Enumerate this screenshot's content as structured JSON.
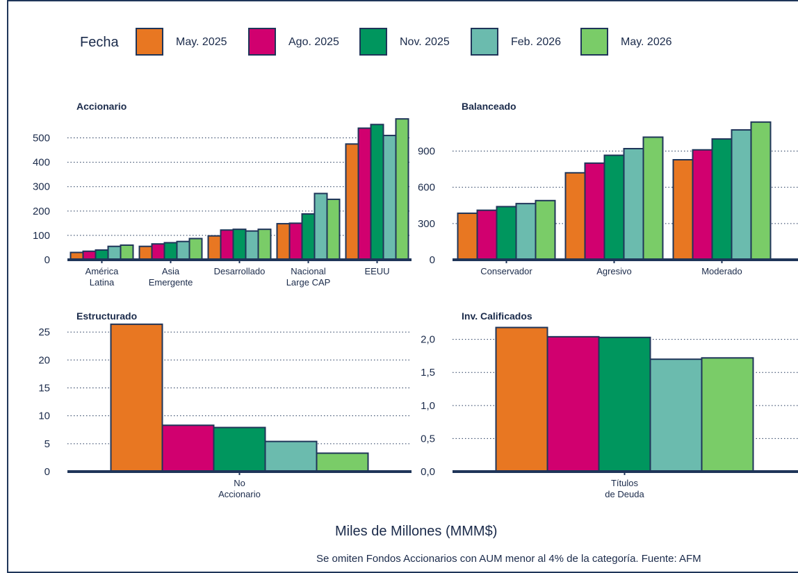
{
  "legend": {
    "title": "Fecha",
    "items": [
      {
        "label": "May. 2025",
        "color": "#E87722"
      },
      {
        "label": "Ago. 2025",
        "color": "#D1006F"
      },
      {
        "label": "Nov. 2025",
        "color": "#00965E"
      },
      {
        "label": "Feb. 2026",
        "color": "#6BBBAE"
      },
      {
        "label": "May. 2026",
        "color": "#7ACC68"
      }
    ]
  },
  "footer": {
    "units": "Miles de Millones (MMM$)",
    "note": "Se omiten Fondos Accionarios con AUM menor al 4% de la categoría. Fuente: AFM"
  },
  "chart_data": [
    {
      "type": "bar",
      "title": "Accionario",
      "categories": [
        "América\nLatina",
        "Asia\nEmergente",
        "Desarrollado",
        "Nacional\nLarge CAP",
        "EEUU"
      ],
      "yticks": [
        "0",
        "100",
        "200",
        "300",
        "400",
        "500"
      ],
      "tick_values": [
        0,
        100,
        200,
        300,
        400,
        500
      ],
      "ylim": [
        0,
        570
      ],
      "grid": true,
      "series": [
        {
          "name": "May. 2025",
          "values": [
            30,
            55,
            98,
            148,
            475
          ]
        },
        {
          "name": "Ago. 2025",
          "values": [
            35,
            65,
            122,
            150,
            540
          ]
        },
        {
          "name": "Nov. 2025",
          "values": [
            40,
            70,
            125,
            188,
            555
          ]
        },
        {
          "name": "Feb. 2026",
          "values": [
            55,
            75,
            118,
            272,
            510
          ]
        },
        {
          "name": "May. 2026",
          "values": [
            60,
            87,
            125,
            248,
            578
          ]
        }
      ]
    },
    {
      "type": "bar",
      "title": "Balanceado",
      "categories": [
        "Conservador",
        "Agresivo",
        "Moderado"
      ],
      "yticks": [
        "0",
        "300",
        "600",
        "900"
      ],
      "tick_values": [
        0,
        300,
        600,
        900
      ],
      "ylim": [
        0,
        1150
      ],
      "grid": true,
      "series": [
        {
          "name": "May. 2025",
          "values": [
            385,
            720,
            828
          ]
        },
        {
          "name": "Ago. 2025",
          "values": [
            410,
            800,
            910
          ]
        },
        {
          "name": "Nov. 2025",
          "values": [
            440,
            865,
            1000
          ]
        },
        {
          "name": "Feb. 2026",
          "values": [
            465,
            920,
            1075
          ]
        },
        {
          "name": "May. 2026",
          "values": [
            490,
            1015,
            1140
          ]
        }
      ]
    },
    {
      "type": "bar",
      "title": "Estructurado",
      "categories": [
        "No\nAccionario"
      ],
      "yticks": [
        "0",
        "5",
        "10",
        "15",
        "20",
        "25"
      ],
      "tick_values": [
        0,
        5,
        10,
        15,
        20,
        25
      ],
      "ylim": [
        0,
        27
      ],
      "grid": true,
      "series": [
        {
          "name": "May. 2025",
          "values": [
            26.4
          ]
        },
        {
          "name": "Ago. 2025",
          "values": [
            8.3
          ]
        },
        {
          "name": "Nov. 2025",
          "values": [
            7.9
          ]
        },
        {
          "name": "Feb. 2026",
          "values": [
            5.4
          ]
        },
        {
          "name": "May. 2026",
          "values": [
            3.3
          ]
        }
      ]
    },
    {
      "type": "bar",
      "title": "Inv. Calificados",
      "categories": [
        "Títulos\nde Deuda"
      ],
      "yticks": [
        "0,0",
        "0,5",
        "1,0",
        "1,5",
        "2,0"
      ],
      "tick_values": [
        0,
        0.5,
        1.0,
        1.5,
        2.0
      ],
      "ylim": [
        0,
        2.28
      ],
      "grid": true,
      "series": [
        {
          "name": "May. 2025",
          "values": [
            2.18
          ]
        },
        {
          "name": "Ago. 2025",
          "values": [
            2.04
          ]
        },
        {
          "name": "Nov. 2025",
          "values": [
            2.03
          ]
        },
        {
          "name": "Feb. 2026",
          "values": [
            1.7
          ]
        },
        {
          "name": "May. 2026",
          "values": [
            1.72
          ]
        }
      ]
    }
  ]
}
